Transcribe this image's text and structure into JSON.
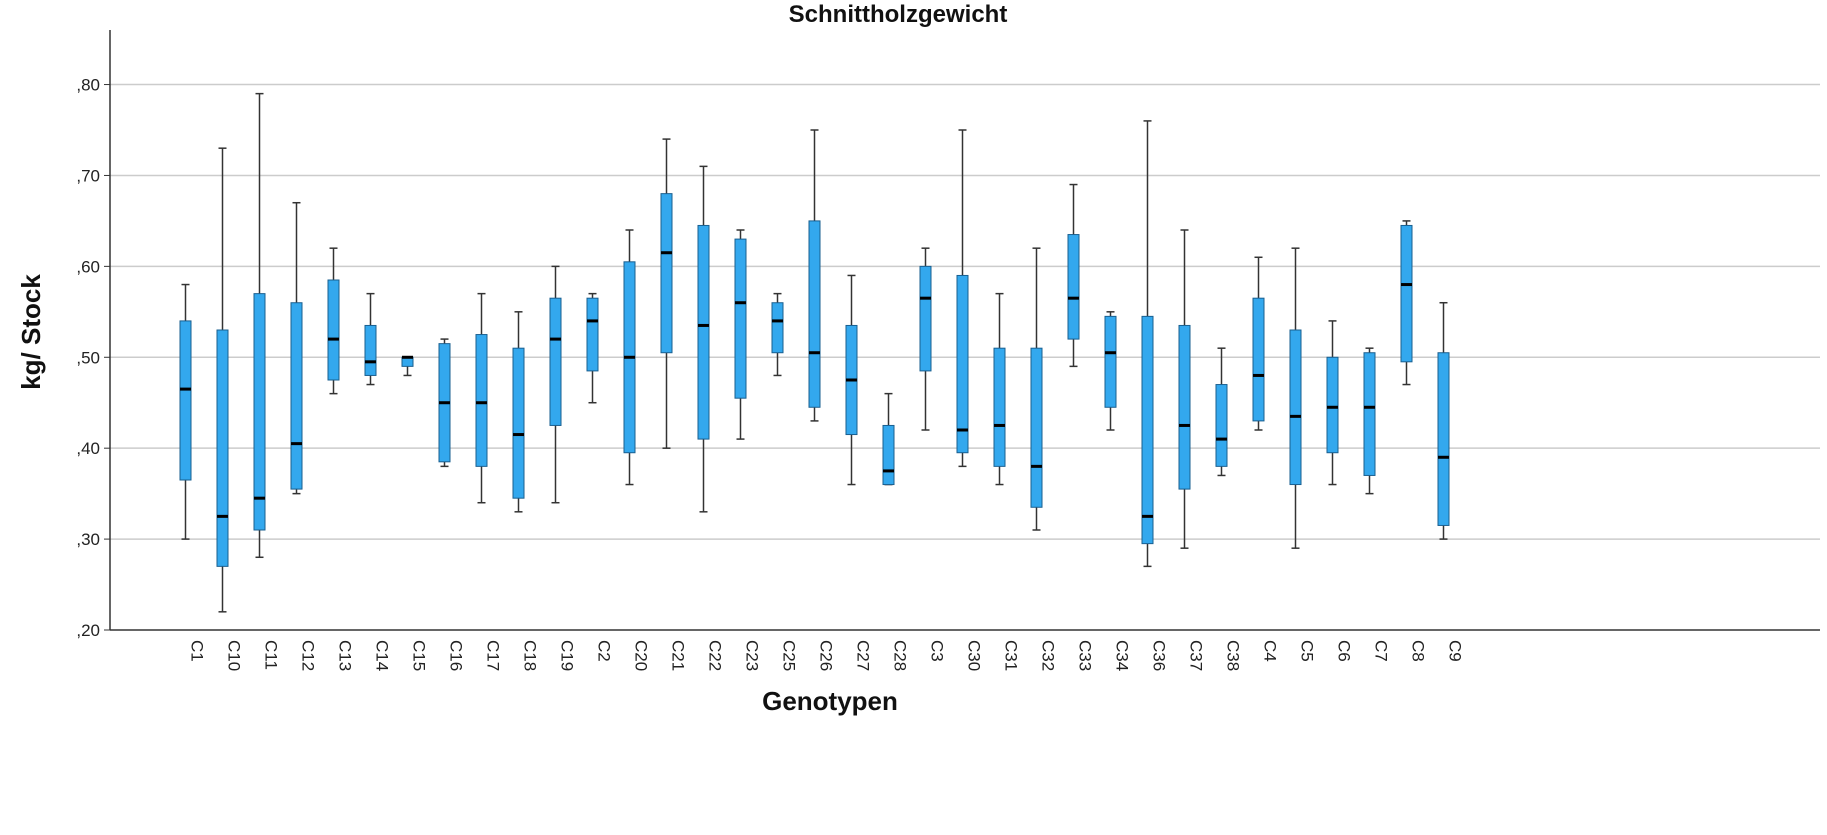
{
  "chart_data": {
    "type": "boxplot",
    "title": "Schnittholzgewicht",
    "xlabel": "Genotypen",
    "ylabel": "kg/ Stock",
    "ylim": [
      0.2,
      0.86
    ],
    "yticks": [
      0.2,
      0.3,
      0.4,
      0.5,
      0.6,
      0.7,
      0.8
    ],
    "ytick_labels": [
      ",20",
      ",30",
      ",40",
      ",50",
      ",60",
      ",70",
      ",80"
    ],
    "grid": true,
    "box_color": "#33a8ee",
    "box_stroke": "#1a5f8f",
    "categories": [
      "C1",
      "C10",
      "C11",
      "C12",
      "C13",
      "C14",
      "C15",
      "C16",
      "C17",
      "C18",
      "C19",
      "C2",
      "C20",
      "C21",
      "C22",
      "C23",
      "C25",
      "C26",
      "C27",
      "C28",
      "C3",
      "C30",
      "C31",
      "C32",
      "C33",
      "C34",
      "C36",
      "C37",
      "C38",
      "C4",
      "C5",
      "C6",
      "C7",
      "C8",
      "C9"
    ],
    "boxes": [
      {
        "min": 0.3,
        "q1": 0.365,
        "median": 0.465,
        "q3": 0.54,
        "max": 0.58
      },
      {
        "min": 0.22,
        "q1": 0.27,
        "median": 0.325,
        "q3": 0.53,
        "max": 0.73
      },
      {
        "min": 0.28,
        "q1": 0.31,
        "median": 0.345,
        "q3": 0.57,
        "max": 0.79
      },
      {
        "min": 0.35,
        "q1": 0.355,
        "median": 0.405,
        "q3": 0.56,
        "max": 0.67
      },
      {
        "min": 0.46,
        "q1": 0.475,
        "median": 0.52,
        "q3": 0.585,
        "max": 0.62
      },
      {
        "min": 0.47,
        "q1": 0.48,
        "median": 0.495,
        "q3": 0.535,
        "max": 0.57
      },
      {
        "min": 0.48,
        "q1": 0.49,
        "median": 0.5,
        "q3": 0.5,
        "max": 0.5
      },
      {
        "min": 0.38,
        "q1": 0.385,
        "median": 0.45,
        "q3": 0.515,
        "max": 0.52
      },
      {
        "min": 0.34,
        "q1": 0.38,
        "median": 0.45,
        "q3": 0.525,
        "max": 0.57
      },
      {
        "min": 0.33,
        "q1": 0.345,
        "median": 0.415,
        "q3": 0.51,
        "max": 0.55
      },
      {
        "min": 0.34,
        "q1": 0.425,
        "median": 0.52,
        "q3": 0.565,
        "max": 0.6
      },
      {
        "min": 0.45,
        "q1": 0.485,
        "median": 0.54,
        "q3": 0.565,
        "max": 0.57
      },
      {
        "min": 0.36,
        "q1": 0.395,
        "median": 0.5,
        "q3": 0.605,
        "max": 0.64
      },
      {
        "min": 0.4,
        "q1": 0.505,
        "median": 0.615,
        "q3": 0.68,
        "max": 0.74
      },
      {
        "min": 0.33,
        "q1": 0.41,
        "median": 0.535,
        "q3": 0.645,
        "max": 0.71
      },
      {
        "min": 0.41,
        "q1": 0.455,
        "median": 0.56,
        "q3": 0.63,
        "max": 0.64
      },
      {
        "min": 0.48,
        "q1": 0.505,
        "median": 0.54,
        "q3": 0.56,
        "max": 0.57
      },
      {
        "min": 0.43,
        "q1": 0.445,
        "median": 0.505,
        "q3": 0.65,
        "max": 0.75
      },
      {
        "min": 0.36,
        "q1": 0.415,
        "median": 0.475,
        "q3": 0.535,
        "max": 0.59
      },
      {
        "min": 0.36,
        "q1": 0.36,
        "median": 0.375,
        "q3": 0.425,
        "max": 0.46
      },
      {
        "min": 0.42,
        "q1": 0.485,
        "median": 0.565,
        "q3": 0.6,
        "max": 0.62
      },
      {
        "min": 0.38,
        "q1": 0.395,
        "median": 0.42,
        "q3": 0.59,
        "max": 0.75
      },
      {
        "min": 0.36,
        "q1": 0.38,
        "median": 0.425,
        "q3": 0.51,
        "max": 0.57
      },
      {
        "min": 0.31,
        "q1": 0.335,
        "median": 0.38,
        "q3": 0.51,
        "max": 0.62
      },
      {
        "min": 0.49,
        "q1": 0.52,
        "median": 0.565,
        "q3": 0.635,
        "max": 0.69
      },
      {
        "min": 0.42,
        "q1": 0.445,
        "median": 0.505,
        "q3": 0.545,
        "max": 0.55
      },
      {
        "min": 0.27,
        "q1": 0.295,
        "median": 0.325,
        "q3": 0.545,
        "max": 0.76
      },
      {
        "min": 0.29,
        "q1": 0.355,
        "median": 0.425,
        "q3": 0.535,
        "max": 0.64
      },
      {
        "min": 0.37,
        "q1": 0.38,
        "median": 0.41,
        "q3": 0.47,
        "max": 0.51
      },
      {
        "min": 0.42,
        "q1": 0.43,
        "median": 0.48,
        "q3": 0.565,
        "max": 0.61
      },
      {
        "min": 0.29,
        "q1": 0.36,
        "median": 0.435,
        "q3": 0.53,
        "max": 0.62
      },
      {
        "min": 0.36,
        "q1": 0.395,
        "median": 0.445,
        "q3": 0.5,
        "max": 0.54
      },
      {
        "min": 0.35,
        "q1": 0.37,
        "median": 0.445,
        "q3": 0.505,
        "max": 0.51
      },
      {
        "min": 0.47,
        "q1": 0.495,
        "median": 0.58,
        "q3": 0.645,
        "max": 0.65
      },
      {
        "min": 0.3,
        "q1": 0.315,
        "median": 0.39,
        "q3": 0.505,
        "max": 0.56
      }
    ]
  }
}
